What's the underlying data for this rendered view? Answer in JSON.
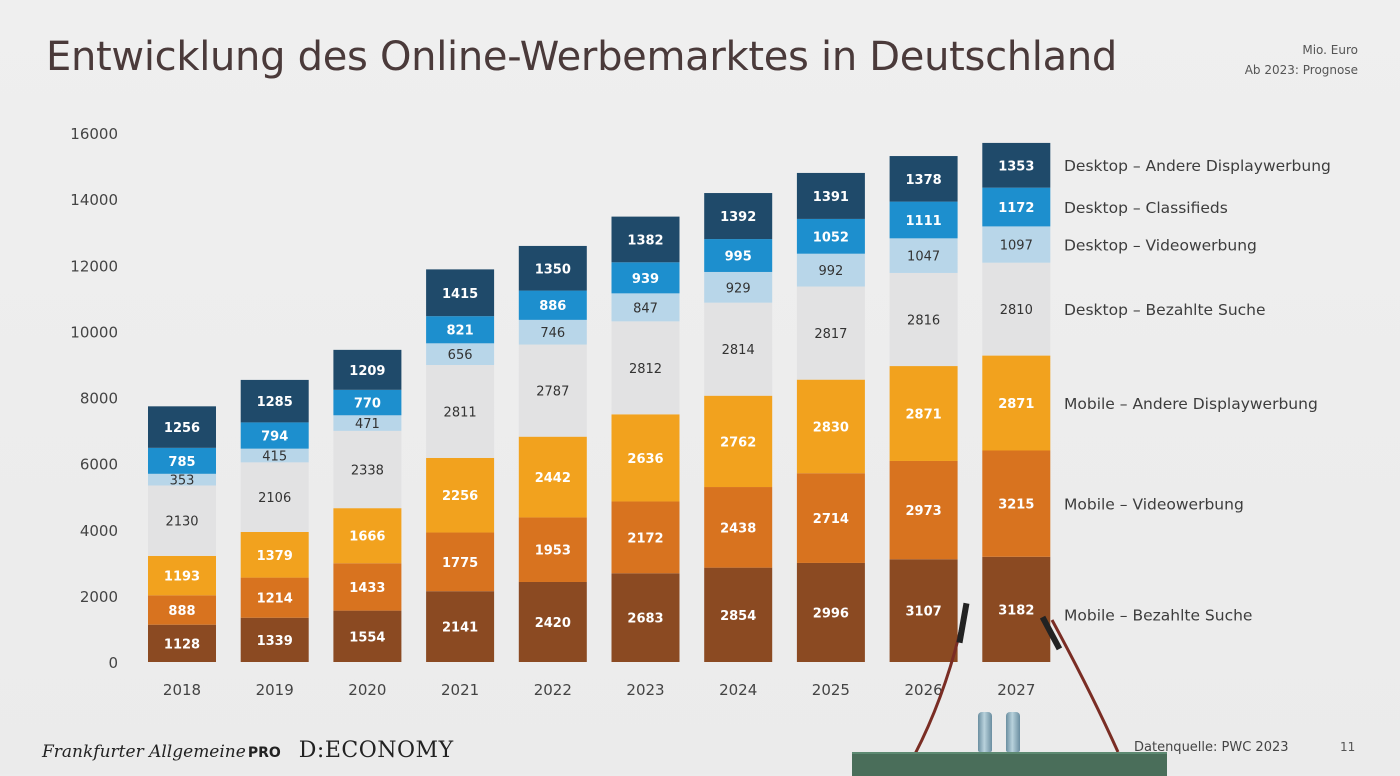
{
  "title": "Entwicklung des Online-Werbemarktes in Deutschland",
  "meta": {
    "unit": "Mio. Euro",
    "note": "Ab 2023: Prognose"
  },
  "footer": {
    "brand_faz": "Frankfurter Allgemeine",
    "brand_pro": "PRO",
    "brand_deco": "D:ECONOMY",
    "source": "Datenquelle: PWC 2023",
    "page": "11"
  },
  "colors": {
    "mobile_search": "#8b4a22",
    "mobile_video": "#d8731f",
    "mobile_display": "#f2a21e",
    "desktop_search": "#e2e2e3",
    "desktop_video": "#b8d6e9",
    "desktop_classifieds": "#1d8fce",
    "desktop_display": "#1f4a6a"
  },
  "chart_data": {
    "type": "bar",
    "stacked": true,
    "categories": [
      "2018",
      "2019",
      "2020",
      "2021",
      "2022",
      "2023",
      "2024",
      "2025",
      "2026",
      "2027"
    ],
    "ylim": [
      0,
      16000
    ],
    "yticks": [
      0,
      2000,
      4000,
      6000,
      8000,
      10000,
      12000,
      14000,
      16000
    ],
    "legend_position": "right",
    "series": [
      {
        "name": "Mobile – Bezahlte Suche",
        "color": "#8b4a22",
        "text": "#ffffff",
        "values": [
          1128,
          1339,
          1554,
          2141,
          2420,
          2683,
          2854,
          2996,
          3107,
          3182
        ]
      },
      {
        "name": "Mobile – Videowerbung",
        "color": "#d8731f",
        "text": "#ffffff",
        "values": [
          888,
          1214,
          1433,
          1775,
          1953,
          2172,
          2438,
          2714,
          2973,
          3215
        ]
      },
      {
        "name": "Mobile – Andere Displaywerbung",
        "color": "#f2a21e",
        "text": "#ffffff",
        "values": [
          1193,
          1379,
          1666,
          2256,
          2442,
          2636,
          2762,
          2830,
          2871,
          2871
        ]
      },
      {
        "name": "Desktop – Bezahlte Suche",
        "color": "#e2e2e3",
        "text": "#333333",
        "values": [
          2130,
          2106,
          2338,
          2811,
          2787,
          2812,
          2814,
          2817,
          2816,
          2810
        ]
      },
      {
        "name": "Desktop – Videowerbung",
        "color": "#b8d6e9",
        "text": "#333333",
        "values": [
          353,
          415,
          471,
          656,
          746,
          847,
          929,
          992,
          1047,
          1097
        ]
      },
      {
        "name": "Desktop – Classifieds",
        "color": "#1d8fce",
        "text": "#ffffff",
        "values": [
          785,
          794,
          770,
          821,
          886,
          939,
          995,
          1052,
          1111,
          1172
        ]
      },
      {
        "name": "Desktop – Andere Displaywerbung",
        "color": "#1f4a6a",
        "text": "#ffffff",
        "values": [
          1256,
          1285,
          1209,
          1415,
          1350,
          1382,
          1392,
          1391,
          1378,
          1353
        ]
      }
    ]
  }
}
